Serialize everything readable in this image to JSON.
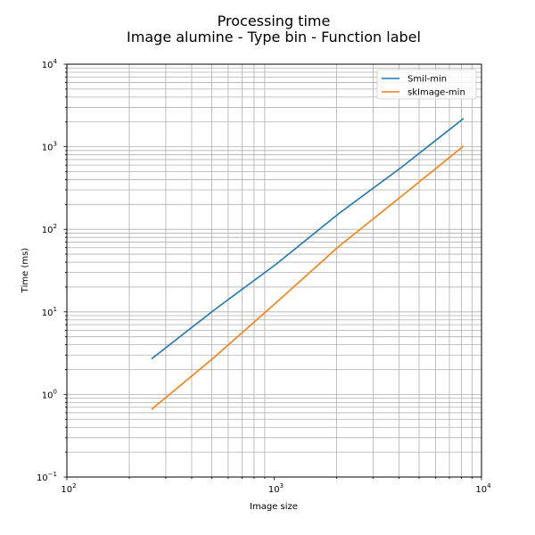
{
  "chart_data": {
    "type": "line",
    "title": "Processing time",
    "subtitle": "Image alumine - Type bin - Function label",
    "xlabel": "Image size",
    "ylabel": "Time (ms)",
    "xscale": "log",
    "yscale": "log",
    "xlim": [
      100,
      10000
    ],
    "ylim": [
      0.1,
      10000
    ],
    "grid": "both major and minor",
    "legend_position": "top-right",
    "x_ticks": [
      {
        "base": "10",
        "exp": "2"
      },
      {
        "base": "10",
        "exp": "3"
      },
      {
        "base": "10",
        "exp": "4"
      }
    ],
    "y_ticks": [
      {
        "base": "10",
        "exp": "−1"
      },
      {
        "base": "10",
        "exp": "0"
      },
      {
        "base": "10",
        "exp": "1"
      },
      {
        "base": "10",
        "exp": "2"
      },
      {
        "base": "10",
        "exp": "3"
      },
      {
        "base": "10",
        "exp": "4"
      }
    ],
    "series": [
      {
        "name": "Smil-min",
        "color": "#1f77b4",
        "x": [
          256,
          512,
          1024,
          2048,
          4096,
          8192
        ],
        "y": [
          2.7,
          10.5,
          38,
          155,
          560,
          2200
        ]
      },
      {
        "name": "skImage-min",
        "color": "#ff7f0e",
        "x": [
          256,
          512,
          1024,
          2048,
          4096,
          8192
        ],
        "y": [
          0.66,
          2.8,
          13,
          62,
          250,
          1020
        ]
      }
    ]
  }
}
